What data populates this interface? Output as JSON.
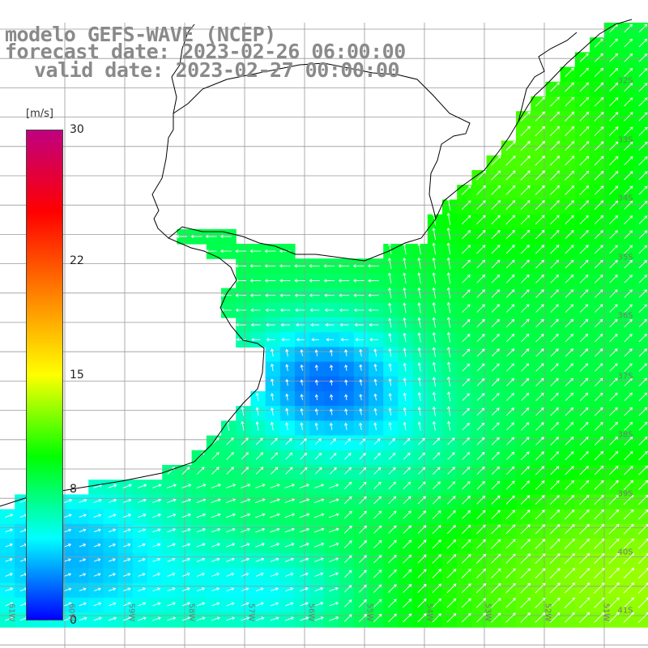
{
  "header": {
    "line1": "modelo GEFS-WAVE (NCEP)",
    "line2": "forecast date: 2023-02-26 06:00:00",
    "line3": "valid date: 2023-02-27 00:00:00"
  },
  "legend": {
    "unit": "[m/s]",
    "ticks": [
      "30",
      "22",
      "15",
      "8",
      "0"
    ],
    "tick_values": [
      30,
      22,
      15,
      8,
      0
    ],
    "range": [
      0,
      30
    ],
    "colors": [
      "#0000ff",
      "#00ffff",
      "#00ff00",
      "#ffff00",
      "#ff8000",
      "#ff0000",
      "#c00080"
    ]
  },
  "map": {
    "latitude_labels": [
      "32S",
      "33S",
      "34S",
      "35S",
      "36S",
      "37S",
      "38S",
      "39S",
      "40S",
      "41S"
    ],
    "longitude_labels": [
      "61W",
      "60W",
      "59W",
      "58W",
      "57W",
      "56W",
      "55W",
      "54W",
      "53W",
      "52W",
      "51W"
    ],
    "land_color": "#ffffff",
    "grid_color": "#999999",
    "arrow_color": "#ffffff"
  }
}
